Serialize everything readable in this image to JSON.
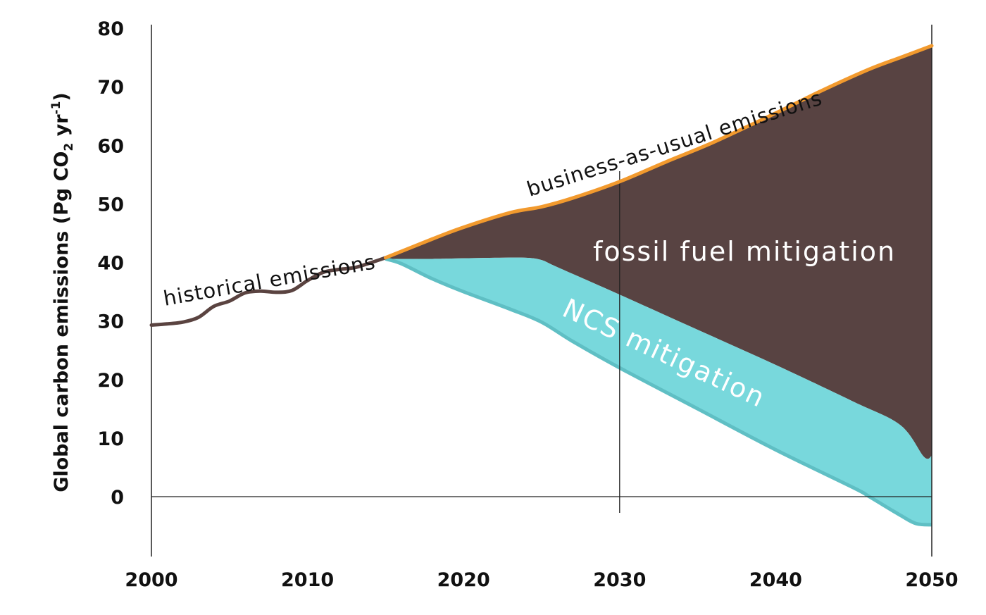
{
  "chart_data": {
    "type": "area",
    "ylabel": {
      "prefix": "Global carbon emissions (Pg CO",
      "sub": "2",
      "mid": " yr",
      "sup": "-1",
      "suffix": ")"
    },
    "xlim": [
      2000,
      2050
    ],
    "ylim": [
      -7,
      80
    ],
    "xticks": [
      "2000",
      "2010",
      "2020",
      "2030",
      "2040",
      "2050"
    ],
    "yticks": [
      "0",
      "10",
      "20",
      "30",
      "40",
      "50",
      "60",
      "70",
      "80"
    ],
    "reference_lines": {
      "y": 0,
      "x": 2030
    },
    "series": [
      {
        "name": "historical emissions",
        "color": "#5a4340",
        "x": [
          2000,
          2001,
          2002,
          2003,
          2004,
          2005,
          2006,
          2007,
          2008,
          2009,
          2010,
          2011,
          2012,
          2013,
          2014,
          2015
        ],
        "y": [
          29.3,
          29.5,
          29.8,
          30.6,
          32.5,
          33.4,
          34.8,
          35.1,
          34.9,
          35.2,
          36.9,
          38.3,
          38.8,
          39.1,
          39.9,
          40.8
        ]
      },
      {
        "name": "business-as-usual emissions",
        "color": "#f29a2e",
        "x": [
          2015,
          2018,
          2020,
          2023,
          2025,
          2027,
          2030,
          2033,
          2036,
          2040,
          2043,
          2046,
          2048,
          2050
        ],
        "y": [
          40.8,
          44.0,
          46.0,
          48.5,
          49.5,
          51.0,
          53.8,
          57.2,
          60.5,
          65.5,
          69.4,
          73.0,
          75.0,
          77.0
        ]
      },
      {
        "name": "fossil fuel mitigation",
        "color": "#584342",
        "x": [
          2015,
          2018,
          2020,
          2022,
          2024,
          2025,
          2026,
          2030,
          2035,
          2040,
          2045,
          2048,
          2049.5,
          2050
        ],
        "y": [
          40.6,
          40.6,
          40.7,
          40.8,
          40.8,
          40.4,
          39.2,
          34.5,
          28.5,
          22.5,
          16.2,
          12.2,
          6.8,
          7.0
        ]
      },
      {
        "name": "NCS mitigation",
        "color": "#78d8dc",
        "x": [
          2015,
          2016,
          2018,
          2020,
          2023,
          2025,
          2027,
          2030,
          2035,
          2040,
          2045,
          2046,
          2048,
          2049,
          2050
        ],
        "y": [
          40.6,
          39.8,
          37.2,
          35.0,
          32.0,
          29.8,
          26.5,
          22.0,
          15.0,
          8.0,
          1.5,
          0.0,
          -3.2,
          -4.6,
          -4.8
        ]
      }
    ],
    "annotations": [
      {
        "text": "historical emissions"
      },
      {
        "text": "business-as-usual emissions"
      },
      {
        "text": "fossil fuel mitigation"
      },
      {
        "text": "NCS mitigation"
      }
    ]
  }
}
